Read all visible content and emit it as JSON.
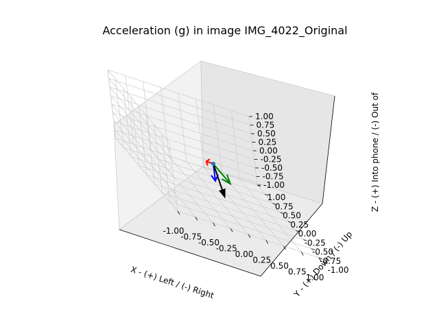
{
  "chart_data": {
    "type": "quiver3d",
    "title": "Acceleration (g) in image IMG_4022_Original",
    "xlabel": "X - (+) Left / (-) Right",
    "ylabel": "Y - (+) Down / (-) Up",
    "zlabel": "Z - (+) Into phone / (-) Out of",
    "xlim": [
      -1.0,
      1.0
    ],
    "ylim": [
      -1.0,
      1.0
    ],
    "zlim": [
      -1.0,
      1.0
    ],
    "ticks": [
      "-1.00",
      "-0.75",
      "-0.50",
      "-0.25",
      "0.00",
      "0.25",
      "0.50",
      "0.75",
      "1.00"
    ],
    "grid": true,
    "origin": [
      0,
      0,
      0
    ],
    "vectors": [
      {
        "color": "#ff0000",
        "end": [
          -0.1,
          0.0,
          0.0
        ]
      },
      {
        "color": "#008000",
        "end": [
          0.0,
          -0.55,
          0.0
        ]
      },
      {
        "color": "#0000ff",
        "end": [
          0.0,
          0.0,
          -0.5
        ]
      },
      {
        "color": "#000000",
        "end": [
          -0.1,
          -0.55,
          -0.5
        ]
      }
    ],
    "origin_marker_color": "#1f77b4"
  }
}
